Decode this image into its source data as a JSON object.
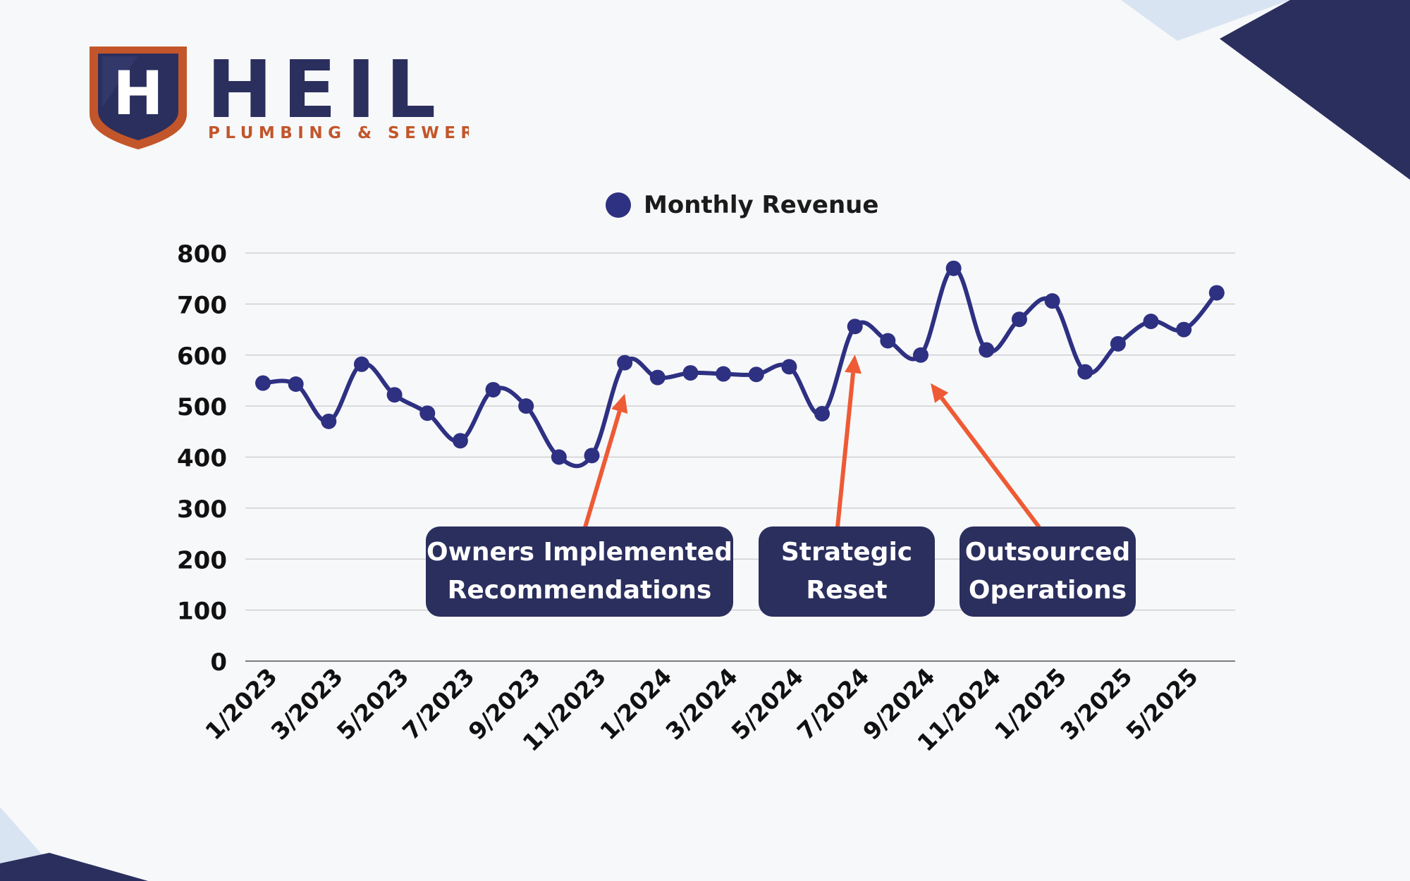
{
  "brand": {
    "name": "HEIL",
    "tagline": "PLUMBING & SEWER",
    "mark_letter": "H",
    "colors": {
      "navy": "#2b2f5e",
      "orange": "#c2562a"
    }
  },
  "chart_data": {
    "type": "line",
    "legend": "Monthly Revenue",
    "legend_position": "top-center",
    "series_color": "#2e3082",
    "x": [
      "1/2023",
      "2/2023",
      "3/2023",
      "4/2023",
      "5/2023",
      "6/2023",
      "7/2023",
      "8/2023",
      "9/2023",
      "10/2023",
      "11/2023",
      "12/2023",
      "1/2024",
      "2/2024",
      "3/2024",
      "4/2024",
      "5/2024",
      "6/2024",
      "7/2024",
      "8/2024",
      "9/2024",
      "10/2024",
      "11/2024",
      "12/2024",
      "1/2025",
      "2/2025",
      "3/2025",
      "4/2025",
      "5/2025",
      "6/2025"
    ],
    "x_tick_labels": [
      "1/2023",
      "3/2023",
      "5/2023",
      "7/2023",
      "9/2023",
      "11/2023",
      "1/2024",
      "3/2024",
      "5/2024",
      "7/2024",
      "9/2024",
      "11/2024",
      "1/2025",
      "3/2025",
      "5/2025"
    ],
    "series": [
      {
        "name": "Monthly Revenue",
        "values": [
          545,
          543,
          470,
          582,
          522,
          486,
          432,
          532,
          500,
          400,
          403,
          585,
          556,
          565,
          563,
          562,
          577,
          485,
          656,
          628,
          600,
          770,
          610,
          670,
          706,
          567,
          622,
          666,
          650,
          722
        ]
      }
    ],
    "y_ticks": [
      0,
      100,
      200,
      300,
      400,
      500,
      600,
      700,
      800
    ],
    "ylim": [
      0,
      800
    ],
    "grid": true,
    "annotations": [
      {
        "label_line1": "Owners Implemented",
        "label_line2": "Recommendations",
        "points_to": "12/2023"
      },
      {
        "label_line1": "Strategic",
        "label_line2": "Reset",
        "points_to": "7/2024"
      },
      {
        "label_line1": "Outsourced",
        "label_line2": "Operations",
        "points_to": "9/2024"
      }
    ],
    "annotation_color": "#ee5a35"
  }
}
